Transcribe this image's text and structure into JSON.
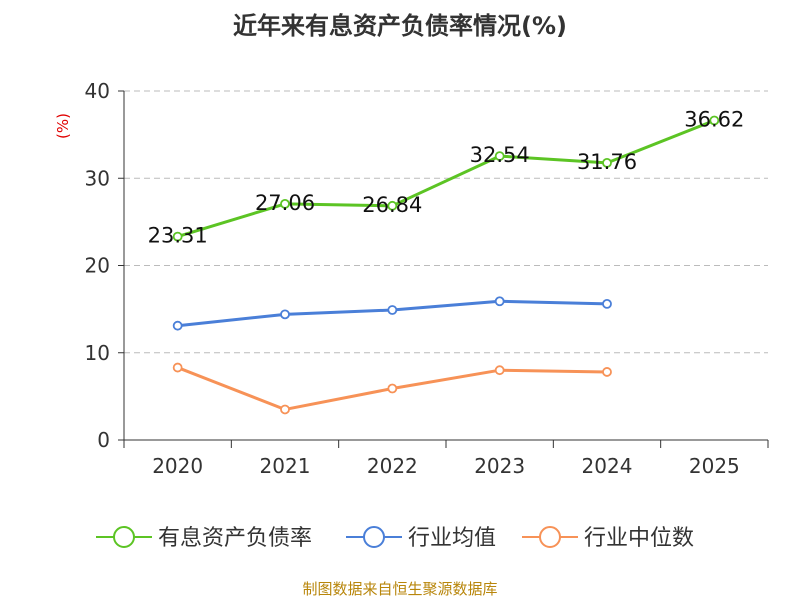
{
  "chart_data": {
    "type": "line",
    "title": "近年来有息资产负债率情况(%)",
    "ylabel": "(%)",
    "xlabel": "",
    "categories": [
      "2020",
      "2021",
      "2022",
      "2023",
      "2024",
      "2025"
    ],
    "ylim": [
      0,
      40
    ],
    "yticks": [
      0,
      10,
      20,
      30,
      40
    ],
    "grid": true,
    "legend_position": "bottom",
    "series": [
      {
        "name": "有息资产负债率",
        "color": "#5cc424",
        "values": [
          23.31,
          27.06,
          26.84,
          32.54,
          31.76,
          36.62
        ],
        "labels": [
          "23.31",
          "27.06",
          "26.84",
          "32.54",
          "31.76",
          "36.62"
        ]
      },
      {
        "name": "行业均值",
        "color": "#4a7fd8",
        "values": [
          13.1,
          14.4,
          14.9,
          15.9,
          15.6,
          null
        ]
      },
      {
        "name": "行业中位数",
        "color": "#f79257",
        "values": [
          8.3,
          3.5,
          5.9,
          8.0,
          7.8,
          null
        ]
      }
    ],
    "source": "制图数据来自恒生聚源数据库"
  }
}
